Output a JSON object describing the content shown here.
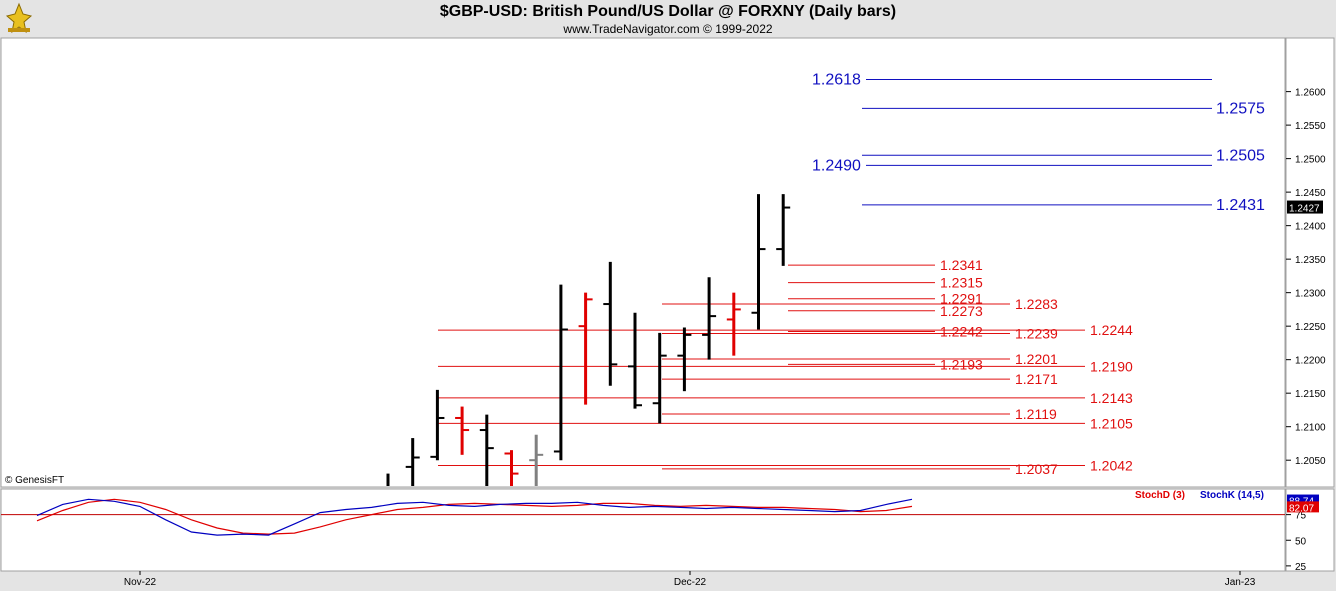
{
  "header": {
    "title": "$GBP-USD:  British Pound/US Dollar @ FORXNY  (Daily bars)",
    "subtitle": "www.TradeNavigator.com © 1999-2022",
    "logo_icon": "trade-navigator-logo-icon"
  },
  "watermark": "© GenesisFT",
  "chart_data": [
    {
      "type": "bar",
      "subtype": "ohlc",
      "y_axis_ticks": [
        "1.2600",
        "1.2550",
        "1.2500",
        "1.2450",
        "1.2400",
        "1.2350",
        "1.2300",
        "1.2250",
        "1.2200",
        "1.2150",
        "1.2100",
        "1.2050"
      ],
      "ylim": [
        1.201,
        1.268
      ],
      "x_axis_ticks": [
        "Nov-22",
        "Dec-22",
        "Jan-23"
      ],
      "last_price_label": "1.2427",
      "last_price": 1.2427,
      "bars": [
        {
          "h": 1.203,
          "l": 1.19,
          "o": 1.195,
          "c": 1.2,
          "color": "#000000"
        },
        {
          "h": 1.2083,
          "l": 1.201,
          "o": 1.204,
          "c": 1.2054,
          "color": "#000000"
        },
        {
          "h": 1.2155,
          "l": 1.205,
          "o": 1.2055,
          "c": 1.2113,
          "color": "#000000"
        },
        {
          "h": 1.213,
          "l": 1.2058,
          "o": 1.2113,
          "c": 1.2095,
          "color": "#e00000"
        },
        {
          "h": 1.2118,
          "l": 1.201,
          "o": 1.2095,
          "c": 1.2068,
          "color": "#000000"
        },
        {
          "h": 1.2065,
          "l": 1.201,
          "o": 1.206,
          "c": 1.203,
          "color": "#e00000"
        },
        {
          "h": 1.2088,
          "l": 1.201,
          "o": 1.205,
          "c": 1.2058,
          "color": "#808080"
        },
        {
          "h": 1.2312,
          "l": 1.205,
          "o": 1.2063,
          "c": 1.2245,
          "color": "#000000"
        },
        {
          "h": 1.23,
          "l": 1.2133,
          "o": 1.225,
          "c": 1.229,
          "color": "#e00000"
        },
        {
          "h": 1.2346,
          "l": 1.2161,
          "o": 1.2283,
          "c": 1.2193,
          "color": "#000000"
        },
        {
          "h": 1.227,
          "l": 1.2127,
          "o": 1.219,
          "c": 1.2132,
          "color": "#000000"
        },
        {
          "h": 1.224,
          "l": 1.2105,
          "o": 1.2135,
          "c": 1.2206,
          "color": "#000000"
        },
        {
          "h": 1.2248,
          "l": 1.2153,
          "o": 1.2206,
          "c": 1.2237,
          "color": "#000000"
        },
        {
          "h": 1.2323,
          "l": 1.22,
          "o": 1.2237,
          "c": 1.2265,
          "color": "#000000"
        },
        {
          "h": 1.23,
          "l": 1.2206,
          "o": 1.226,
          "c": 1.2275,
          "color": "#e00000"
        },
        {
          "h": 1.2447,
          "l": 1.2245,
          "o": 1.227,
          "c": 1.2365,
          "color": "#000000"
        },
        {
          "h": 1.2447,
          "l": 1.234,
          "o": 1.2365,
          "c": 1.2427,
          "color": "#000000"
        }
      ],
      "fib_lines": [
        {
          "value": 1.2618,
          "label": "1.2618",
          "color": "#1010c0",
          "label_side": "left"
        },
        {
          "value": 1.2575,
          "label": "1.2575",
          "color": "#1010c0",
          "label_side": "right"
        },
        {
          "value": 1.2505,
          "label": "1.2505",
          "color": "#1010c0",
          "label_side": "right"
        },
        {
          "value": 1.249,
          "label": "1.2490",
          "color": "#1010c0",
          "label_side": "left"
        },
        {
          "value": 1.2431,
          "label": "1.2431",
          "color": "#1010c0",
          "label_side": "right"
        },
        {
          "value": 1.2341,
          "label": "1.2341",
          "color": "#e01010",
          "label_side": "right"
        },
        {
          "value": 1.2315,
          "label": "1.2315",
          "color": "#e01010",
          "label_side": "right"
        },
        {
          "value": 1.2291,
          "label": "1.2291",
          "color": "#e01010",
          "label_side": "right"
        },
        {
          "value": 1.2283,
          "label": "1.2283",
          "color": "#e01010",
          "label_side": "right"
        },
        {
          "value": 1.2273,
          "label": "1.2273",
          "color": "#e01010",
          "label_side": "right"
        },
        {
          "value": 1.2244,
          "label": "1.2244",
          "color": "#e01010",
          "label_side": "right"
        },
        {
          "value": 1.2242,
          "label": "1.2242",
          "color": "#e01010",
          "label_side": "right"
        },
        {
          "value": 1.2239,
          "label": "1.2239",
          "color": "#e01010",
          "label_side": "right"
        },
        {
          "value": 1.2201,
          "label": "1.2201",
          "color": "#e01010",
          "label_side": "right"
        },
        {
          "value": 1.2193,
          "label": "1.2193",
          "color": "#e01010",
          "label_side": "right"
        },
        {
          "value": 1.219,
          "label": "1.2190",
          "color": "#e01010",
          "label_side": "right"
        },
        {
          "value": 1.2171,
          "label": "1.2171",
          "color": "#e01010",
          "label_side": "right"
        },
        {
          "value": 1.2143,
          "label": "1.2143",
          "color": "#e01010",
          "label_side": "right"
        },
        {
          "value": 1.2119,
          "label": "1.2119",
          "color": "#e01010",
          "label_side": "right"
        },
        {
          "value": 1.2105,
          "label": "1.2105",
          "color": "#e01010",
          "label_side": "right"
        },
        {
          "value": 1.2042,
          "label": "1.2042",
          "color": "#e01010",
          "label_side": "right"
        },
        {
          "value": 1.2037,
          "label": "1.2037",
          "color": "#e01010",
          "label_side": "right"
        }
      ]
    },
    {
      "type": "line",
      "y_axis_ticks": [
        "75",
        "50",
        "25"
      ],
      "ylim": [
        20,
        100
      ],
      "reference_line": 75,
      "last_value_labels": [
        "88.74",
        "82.07"
      ],
      "series": [
        {
          "name": "StochD (3)",
          "color": "#e00000",
          "values": [
            69,
            79,
            87,
            90,
            87,
            80,
            70,
            62,
            57,
            56,
            57,
            63,
            70,
            75,
            80,
            82,
            85,
            86,
            85,
            84,
            83,
            84,
            86,
            86,
            84,
            83,
            84,
            83,
            82,
            82,
            81,
            80,
            78,
            79,
            83
          ]
        },
        {
          "name": "StochK (14,5)",
          "color": "#0000c0",
          "values": [
            74,
            85,
            90,
            88,
            83,
            70,
            58,
            55,
            56,
            55,
            66,
            77,
            80,
            82,
            86,
            87,
            84,
            83,
            85,
            86,
            86,
            87,
            84,
            82,
            83,
            82,
            81,
            82,
            81,
            80,
            79,
            78,
            79,
            85,
            90
          ]
        }
      ]
    }
  ]
}
